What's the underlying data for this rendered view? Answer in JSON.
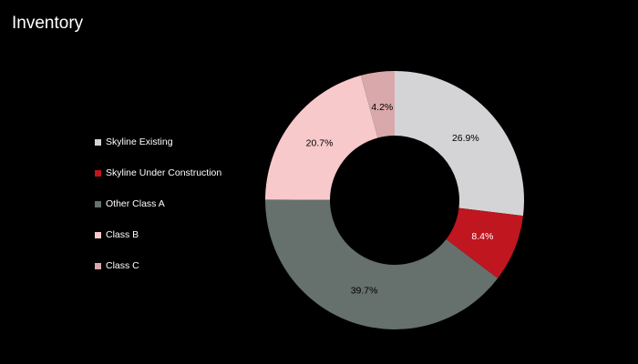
{
  "slide": {
    "title": "Inventory"
  },
  "chart_data": {
    "type": "pie",
    "donut": true,
    "title": "",
    "legend_position": "left",
    "categories": [
      "Skyline Existing",
      "Skyline Under Construction",
      "Other Class A",
      "Class B",
      "Class C"
    ],
    "values": [
      26.9,
      8.4,
      39.7,
      20.7,
      4.2
    ],
    "labels": [
      "26.9%",
      "8.4%",
      "39.7%",
      "20.7%",
      "4.2%"
    ],
    "colors": [
      "#d4d4d6",
      "#bf1620",
      "#66706d",
      "#f7c9cb",
      "#d9a8aa"
    ],
    "label_colors": [
      "#000000",
      "#ffffff",
      "#000000",
      "#000000",
      "#000000"
    ]
  }
}
